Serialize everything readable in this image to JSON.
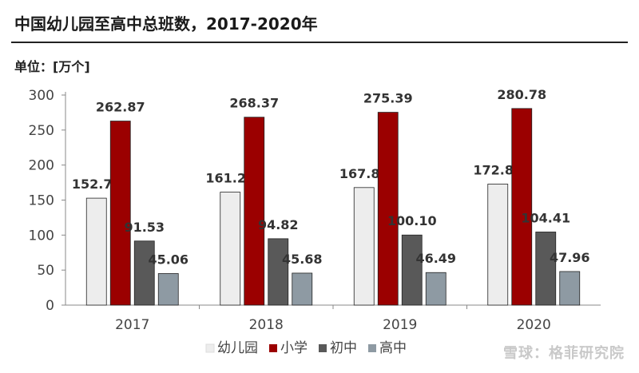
{
  "title": "中国幼儿园至高中总班数，2017-2020年",
  "unit_label": "单位：[万个]",
  "watermark": "雪球：格菲研究院",
  "colors": {
    "幼儿园": "#ededed",
    "小学": "#9b0000",
    "初中": "#595959",
    "高中": "#8e9aa3"
  },
  "chart_data": {
    "type": "bar",
    "categories": [
      "2017",
      "2018",
      "2019",
      "2020"
    ],
    "series": [
      {
        "name": "幼儿园",
        "values": [
          152.74,
          161.29,
          167.89,
          172.86
        ]
      },
      {
        "name": "小学",
        "values": [
          262.87,
          268.37,
          275.39,
          280.78
        ]
      },
      {
        "name": "初中",
        "values": [
          91.53,
          94.82,
          100.1,
          104.41
        ]
      },
      {
        "name": "高中",
        "values": [
          45.06,
          45.68,
          46.49,
          47.96
        ]
      }
    ],
    "value_labels": [
      [
        "152.74",
        "161.29",
        "167.89",
        "172.86"
      ],
      [
        "262.87",
        "268.37",
        "275.39",
        "280.78"
      ],
      [
        "91.53",
        "94.82",
        "100.10",
        "104.41"
      ],
      [
        "45.06",
        "45.68",
        "46.49",
        "47.96"
      ]
    ],
    "ylim": [
      0,
      300
    ],
    "yticks": [
      "0",
      "50",
      "100",
      "150",
      "200",
      "250",
      "300"
    ],
    "legend": "bottom",
    "grid": false
  }
}
